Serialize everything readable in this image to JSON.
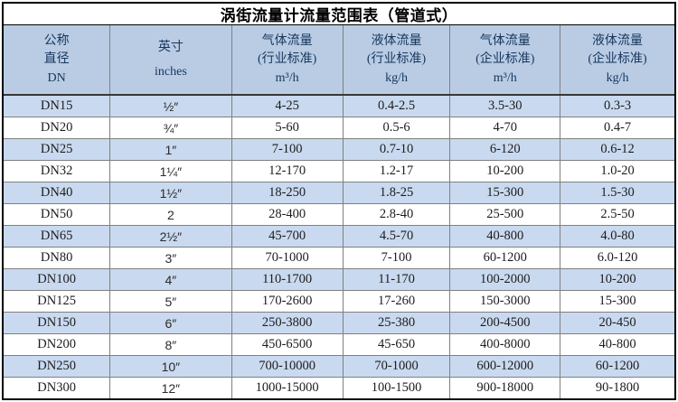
{
  "title": "涡街流量计流量范围表（管道式）",
  "colors": {
    "header_bg": "#b9cce4",
    "band_row_bg": "#c9d9ef",
    "plain_row_bg": "#ffffff",
    "grid_line": "#808080",
    "outer_border": "#000000",
    "header_text": "#16365c",
    "body_text": "#1c1c1c"
  },
  "table": {
    "headers": [
      {
        "lines": [
          "公称",
          "直径",
          "DN"
        ]
      },
      {
        "lines": [
          "英寸",
          "inches"
        ]
      },
      {
        "lines": [
          "气体流量",
          "(行业标准)",
          "m³/h"
        ]
      },
      {
        "lines": [
          "液体流量",
          "(行业标准)",
          "kg/h"
        ]
      },
      {
        "lines": [
          "气体流量",
          "(企业标准)",
          "m³/h"
        ]
      },
      {
        "lines": [
          "液体流量",
          "(企业标准)",
          "kg/h"
        ]
      }
    ],
    "rows": [
      {
        "cells": [
          "DN15",
          "½″",
          "4-25",
          "0.4-2.5",
          "3.5-30",
          "0.3-3"
        ]
      },
      {
        "cells": [
          "DN20",
          "¾″",
          "5-60",
          "0.5-6",
          "4-70",
          "0.4-7"
        ]
      },
      {
        "cells": [
          "DN25",
          "1″",
          "7-100",
          "0.7-10",
          "6-120",
          "0.6-12"
        ]
      },
      {
        "cells": [
          "DN32",
          "1¼″",
          "12-170",
          "1.2-17",
          "10-200",
          "1.0-20"
        ]
      },
      {
        "cells": [
          "DN40",
          "1½″",
          "18-250",
          "1.8-25",
          "15-300",
          "1.5-30"
        ]
      },
      {
        "cells": [
          "DN50",
          "2",
          "28-400",
          "2.8-40",
          "25-500",
          "2.5-50"
        ]
      },
      {
        "cells": [
          "DN65",
          "2½″",
          "45-700",
          "4.5-70",
          "40-800",
          "4.0-80"
        ]
      },
      {
        "cells": [
          "DN80",
          "3″",
          "70-1000",
          "7-100",
          "60-1200",
          "6.0-120"
        ]
      },
      {
        "cells": [
          "DN100",
          "4″",
          "110-1700",
          "11-170",
          "100-2000",
          "10-200"
        ]
      },
      {
        "cells": [
          "DN125",
          "5″",
          "170-2600",
          "17-260",
          "150-3000",
          "15-300"
        ]
      },
      {
        "cells": [
          "DN150",
          "6″",
          "250-3800",
          "25-380",
          "200-4500",
          "20-450"
        ]
      },
      {
        "cells": [
          "DN200",
          "8″",
          "450-6500",
          "45-650",
          "400-8000",
          "40-800"
        ]
      },
      {
        "cells": [
          "DN250",
          "10″",
          "700-10000",
          "70-1000",
          "600-12000",
          "60-1200"
        ]
      },
      {
        "cells": [
          "DN300",
          "12″",
          "1000-15000",
          "100-1500",
          "900-18000",
          "90-1800"
        ]
      }
    ]
  }
}
